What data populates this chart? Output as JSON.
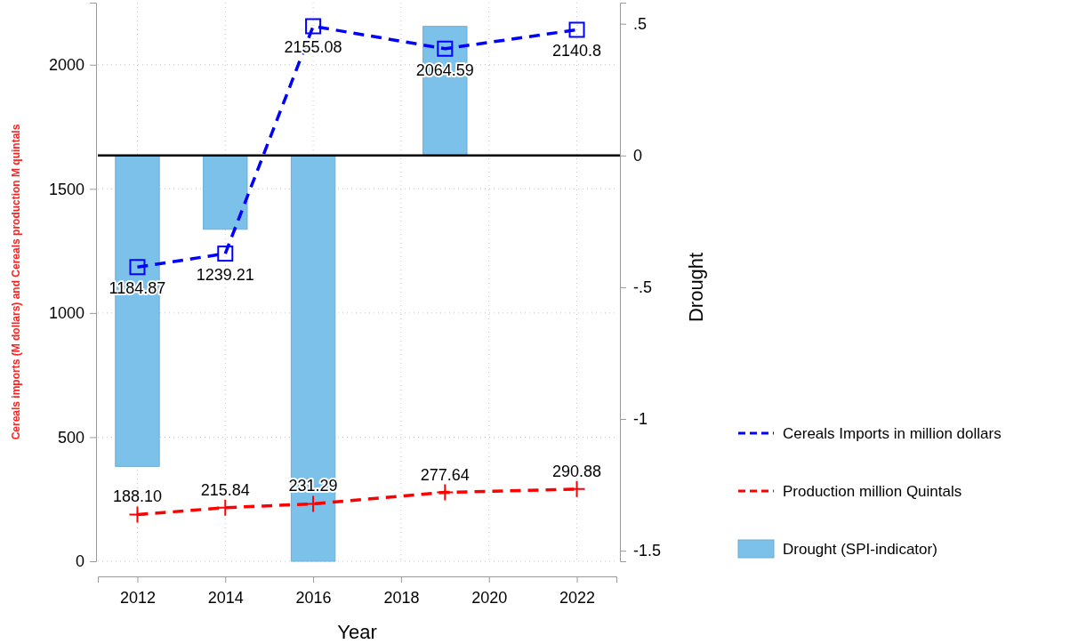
{
  "chart_data": {
    "type": "line",
    "xlabel": "Year",
    "ylabel": "Cereals imports (M dollars) and Cereals production M quintals",
    "y2label": "Drought",
    "x": [
      2012,
      2014,
      2016,
      2019,
      2022
    ],
    "xlim": [
      2011.1,
      2022.9
    ],
    "xticks": [
      2012,
      2014,
      2016,
      2018,
      2020,
      2022
    ],
    "ylim": [
      0,
      2250
    ],
    "yticks": [
      0,
      500,
      1000,
      1500,
      2000
    ],
    "y2lim": [
      -1.54,
      0.58
    ],
    "y2ticks": [
      {
        "value": 0.5,
        "label": ".5"
      },
      0,
      {
        "value": -0.5,
        "label": "-.5"
      },
      -1,
      -1.5
    ],
    "grid": true,
    "legend": "right",
    "ref_lines": [
      {
        "axis": "y2",
        "value": 0,
        "color": "#000000"
      }
    ],
    "series": [
      {
        "type": "bar",
        "axis": "y2",
        "name": "Drought (SPI-indicator)",
        "color": "#7bc1ea",
        "values": [
          -1.18,
          -0.28,
          -1.54,
          0.49,
          null
        ]
      },
      {
        "name": "Cereals Imports in million dollars",
        "color": "#0000ff",
        "marker": "square",
        "line_style": "dashed",
        "values": [
          1184.87,
          1239.21,
          2155.08,
          2064.59,
          2140.8
        ],
        "value_labels": [
          "1184.87",
          "1239.21",
          "2155.08",
          "2064.59",
          "2140.8"
        ]
      },
      {
        "name": "Production million Quintals",
        "color": "#ff0000",
        "marker": "cross",
        "line_style": "dashed",
        "values": [
          188.1,
          215.84,
          231.29,
          277.64,
          290.88
        ],
        "value_labels": [
          "188.10",
          "215.84",
          "231.29",
          "277.64",
          "290.88"
        ]
      }
    ]
  }
}
